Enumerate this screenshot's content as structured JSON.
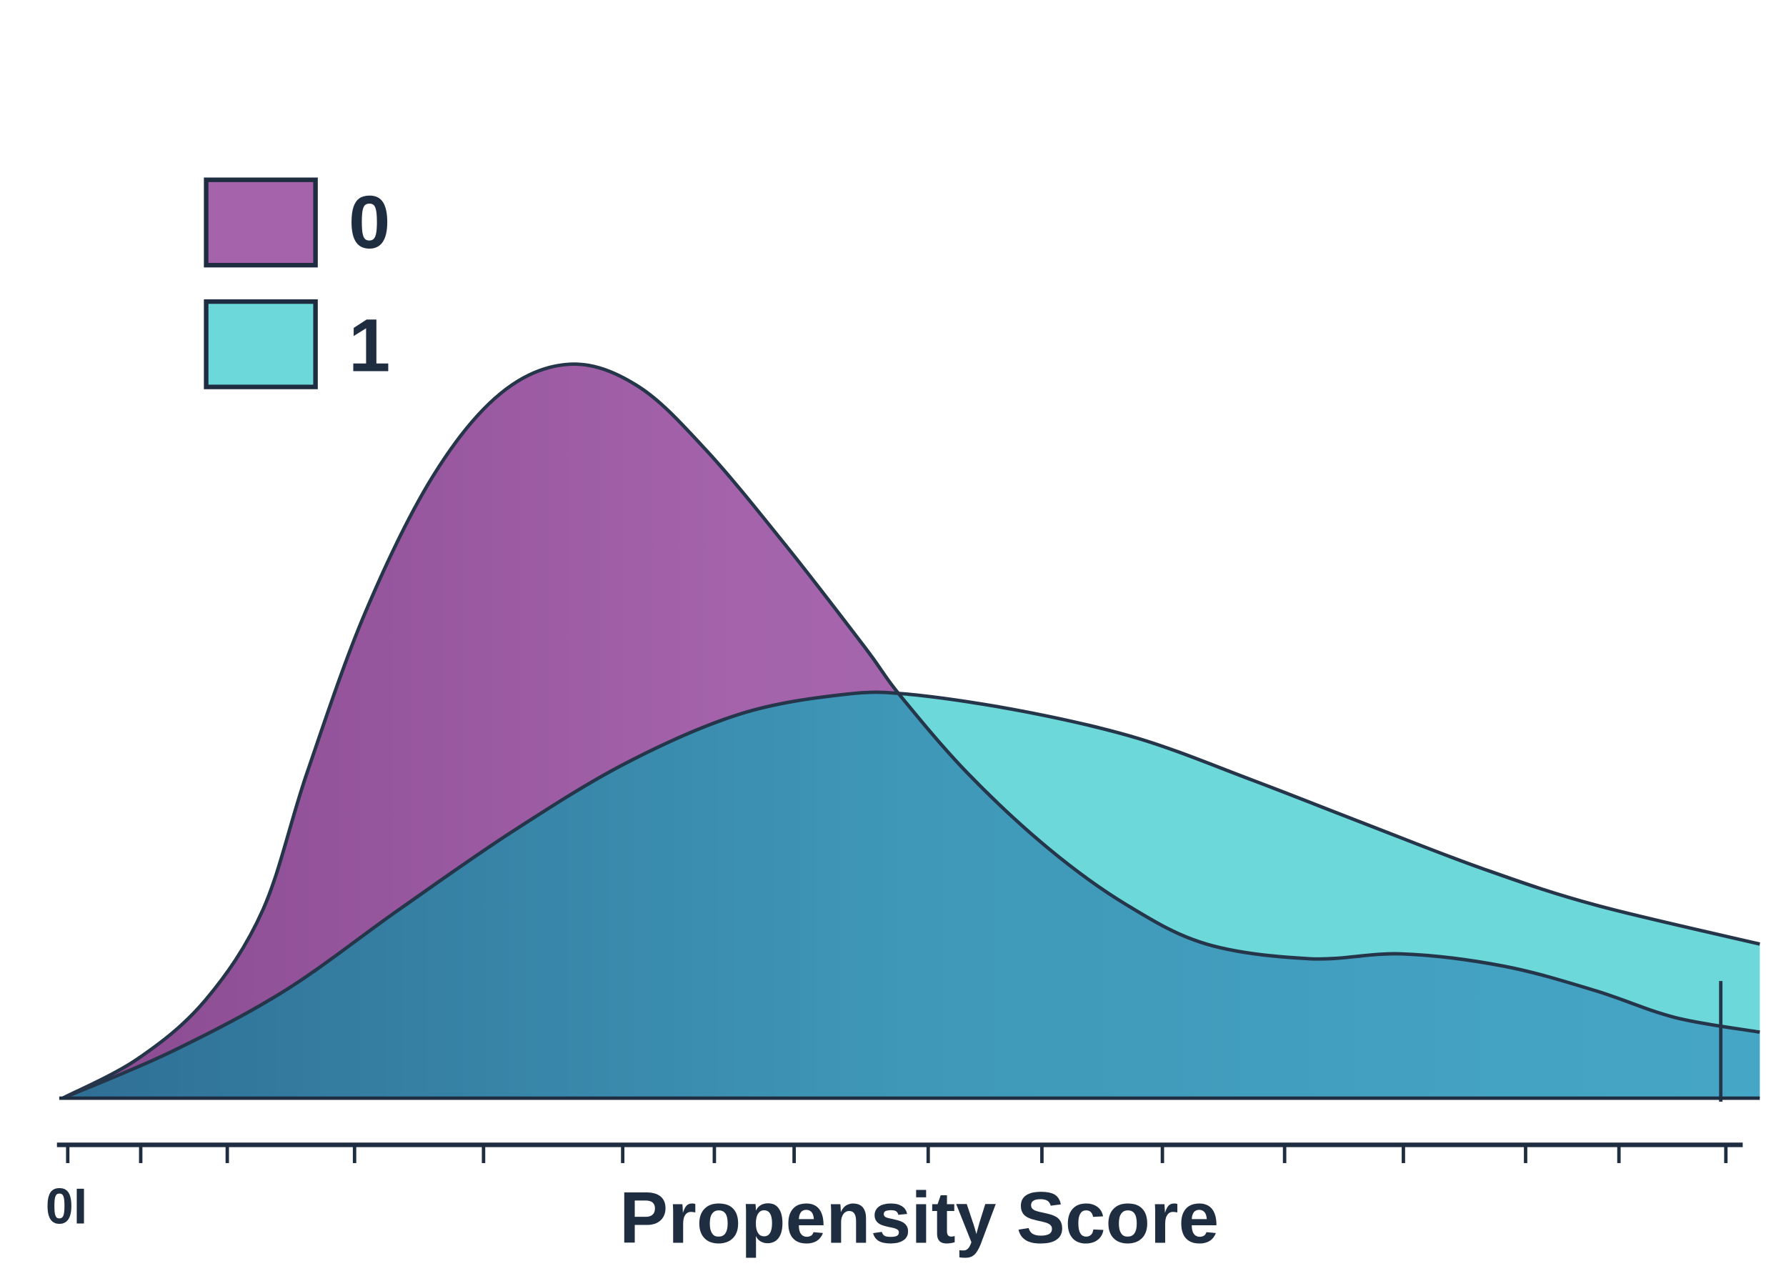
{
  "chart_data": {
    "type": "area",
    "title": "",
    "xlabel": "Propensity Score",
    "ylabel": "",
    "xlim": [
      0,
      1
    ],
    "ylim": [
      0,
      3.5
    ],
    "grid": false,
    "legend_position": "top-left",
    "tick_label": "0I",
    "tick_values": [
      0.003,
      0.046,
      0.097,
      0.172,
      0.248,
      0.33,
      0.384,
      0.431,
      0.51,
      0.577,
      0.648,
      0.72,
      0.79,
      0.862,
      0.917,
      0.98
    ],
    "marker_x": 0.977,
    "overlap_color": "#3f98b8",
    "series": [
      {
        "name": "0",
        "color": "#a463ab",
        "x": [
          0,
          0.044,
          0.084,
          0.118,
          0.144,
          0.178,
          0.218,
          0.258,
          0.299,
          0.339,
          0.379,
          0.426,
          0.473,
          0.493,
          0.533,
          0.581,
          0.627,
          0.674,
          0.735,
          0.789,
          0.849,
          0.903,
          0.95,
          1.0
        ],
        "y": [
          0,
          0.16,
          0.4,
          0.77,
          1.33,
          1.98,
          2.54,
          2.88,
          3.0,
          2.91,
          2.65,
          2.26,
          1.84,
          1.65,
          1.33,
          1.02,
          0.79,
          0.63,
          0.57,
          0.59,
          0.54,
          0.44,
          0.33,
          0.27
        ]
      },
      {
        "name": "1",
        "color": "#6dd8da",
        "x": [
          0,
          0.064,
          0.131,
          0.198,
          0.265,
          0.332,
          0.399,
          0.46,
          0.5,
          0.567,
          0.634,
          0.701,
          0.768,
          0.836,
          0.903,
          1.0
        ],
        "y": [
          0,
          0.19,
          0.44,
          0.77,
          1.09,
          1.37,
          1.57,
          1.65,
          1.65,
          1.58,
          1.47,
          1.3,
          1.12,
          0.94,
          0.79,
          0.63
        ]
      }
    ]
  }
}
